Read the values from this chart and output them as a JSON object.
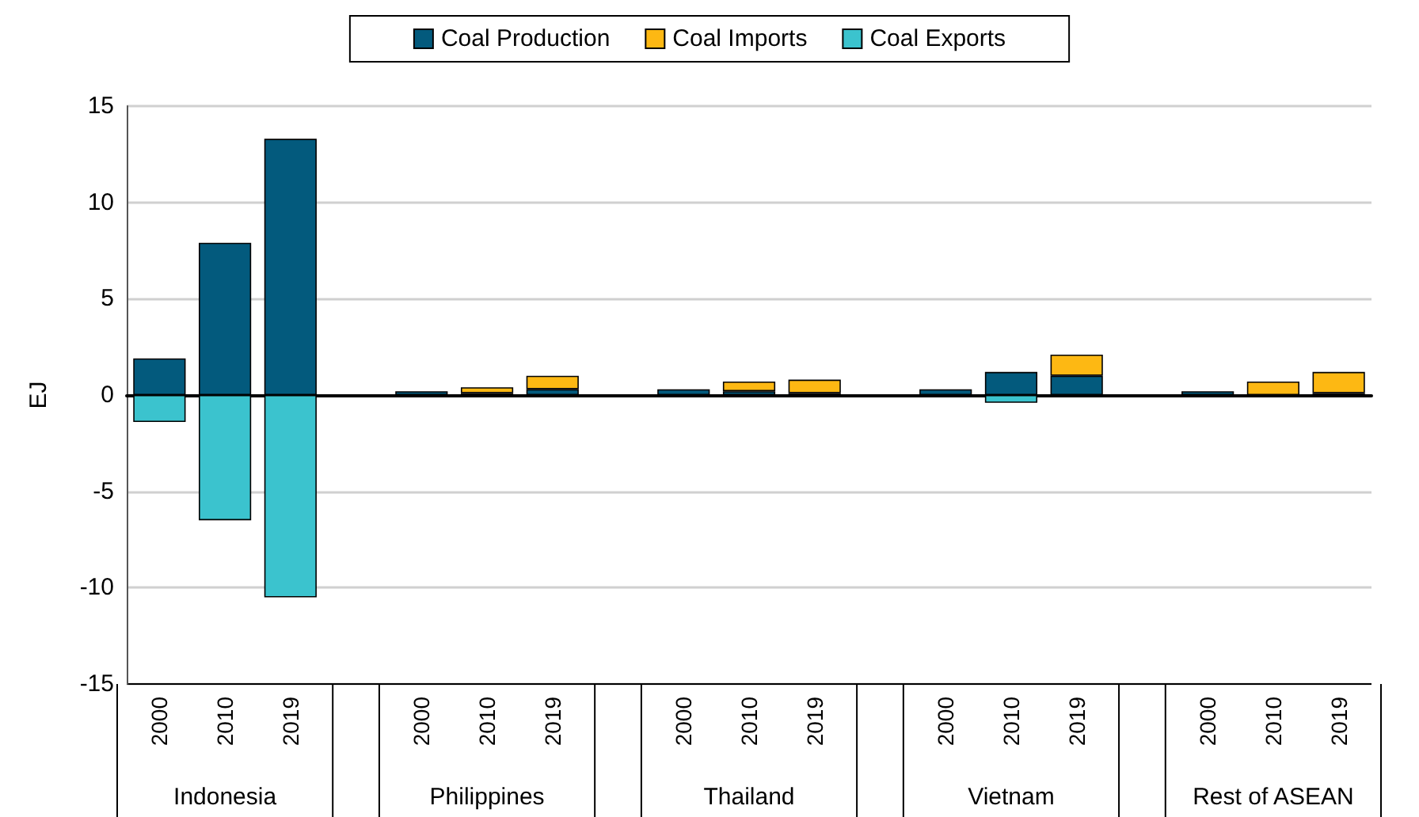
{
  "chart_data": {
    "type": "bar",
    "stacked": true,
    "ylabel": "EJ",
    "categories": [
      "2000",
      "2010",
      "2019",
      null,
      "2000",
      "2010",
      "2019",
      null,
      "2000",
      "2010",
      "2019",
      null,
      "2000",
      "2010",
      "2019",
      null,
      "2000",
      "2010",
      "2019"
    ],
    "series": [
      {
        "name": "Coal Production",
        "color": "#035a7d",
        "values": [
          1.9,
          7.9,
          13.3,
          null,
          0.2,
          0.1,
          0.3,
          null,
          0.3,
          0.2,
          0.1,
          null,
          0.3,
          1.2,
          1.0,
          null,
          0.2,
          null,
          0.1
        ]
      },
      {
        "name": "Coal Imports",
        "color": "#fdb813",
        "values": [
          null,
          null,
          null,
          null,
          null,
          0.3,
          0.7,
          null,
          null,
          0.5,
          0.7,
          null,
          null,
          null,
          1.1,
          null,
          null,
          0.7,
          1.1
        ]
      },
      {
        "name": "Coal Exports",
        "color": "#3bc3ce",
        "values": [
          -1.4,
          -6.5,
          -10.5,
          null,
          null,
          null,
          -0.1,
          null,
          null,
          null,
          null,
          null,
          null,
          -0.4,
          null,
          null,
          null,
          null,
          null
        ]
      }
    ],
    "annotations": [
      "Indonesia",
      "Philippines",
      "Thailand",
      "Vietnam",
      "Rest of ASEAN"
    ],
    "ylim": [
      -15,
      15
    ],
    "yticks": [
      -15,
      -10,
      -5,
      0,
      5,
      10,
      15
    ],
    "grid": "y",
    "legend": "top"
  }
}
